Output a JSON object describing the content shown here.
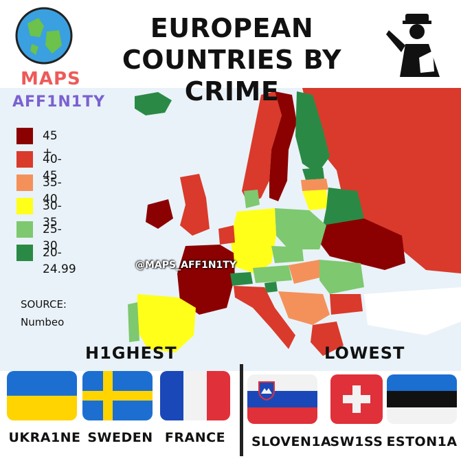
{
  "header": {
    "title_line1": "EUROPEAN",
    "title_line2": "COUNTRIES BY CRIME",
    "brand_line1": "MAPS",
    "brand_line2": "AFF1N1TY"
  },
  "colors": {
    "c45plus": "#8b0000",
    "c40_45": "#d93a2b",
    "c35_40": "#f4915a",
    "c30_35": "#ffff1a",
    "c25_30": "#7ec870",
    "c20_25": "#2a8a45",
    "sea": "#e9f2f8",
    "nodata": "#ffffff"
  },
  "legend": [
    {
      "label": "45 +",
      "color": "#8b0000"
    },
    {
      "label": "40-45",
      "color": "#d93a2b"
    },
    {
      "label": "35-40",
      "color": "#f4915a"
    },
    {
      "label": "30-35",
      "color": "#ffff1a"
    },
    {
      "label": "25-30",
      "color": "#7ec870"
    },
    {
      "label": "20-24.99",
      "color": "#2a8a45"
    }
  ],
  "source": {
    "label": "SOURCE:",
    "name": "Numbeo"
  },
  "watermark": "@MAPS_AFF1N1TY",
  "highest": {
    "title": "H1GHEST",
    "countries": [
      {
        "name": "UKRA1NE",
        "flag": "ukraine-flag"
      },
      {
        "name": "SWEDEN",
        "flag": "sweden-flag"
      },
      {
        "name": "FRANCE",
        "flag": "france-flag"
      }
    ]
  },
  "lowest": {
    "title": "LOWEST",
    "countries": [
      {
        "name": "SLOVEN1A",
        "flag": "slovenia-flag"
      },
      {
        "name": "SW1SS",
        "flag": "switzerland-flag"
      },
      {
        "name": "ESTON1A",
        "flag": "estonia-flag"
      }
    ]
  },
  "icons": [
    "globe-icon",
    "police-officer-icon"
  ]
}
